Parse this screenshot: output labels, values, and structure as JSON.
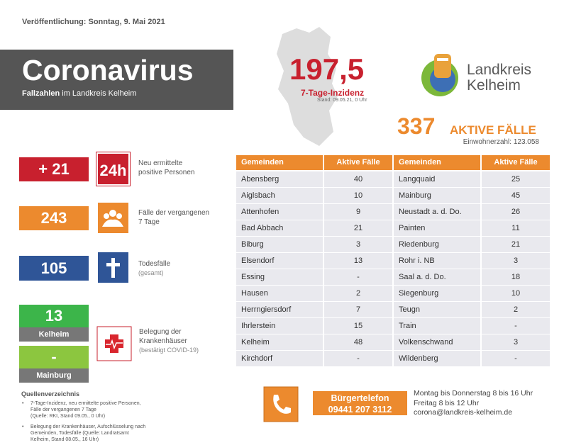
{
  "header": {
    "published": "Veröffentlichung: Sonntag, 9. Mai 2021",
    "title": "Coronavirus",
    "subtitle_bold": "Fallzahlen",
    "subtitle": "im Landkreis Kelheim"
  },
  "incidence": {
    "value": "197,5",
    "label": "7-Tage-Inzidenz",
    "stand": "Stand: 09.05.21, 0 Uhr"
  },
  "logo": {
    "line1": "Landkreis",
    "line2": "Kelheim"
  },
  "active": {
    "value": "337",
    "label": "AKTIVE FÄLLE",
    "population": "Einwohnerzahl: 123.058"
  },
  "stats": [
    {
      "value": "+ 21",
      "icon": "24h",
      "label": [
        "Neu ermittelte",
        "positive Personen"
      ]
    },
    {
      "value": "243",
      "label": [
        "Fälle der vergangenen",
        "7 Tage"
      ]
    },
    {
      "value": "105",
      "label": [
        "Todesfälle",
        "(gesamt)"
      ]
    }
  ],
  "hospital": {
    "kelheim_value": "13",
    "kelheim": "Kelheim",
    "mainburg_value": "-",
    "mainburg": "Mainburg",
    "label": [
      "Belegung der",
      "Krankenhäuser",
      "(bestätigt COVID-19)"
    ]
  },
  "table": {
    "headers": [
      "Gemeinden",
      "Aktive Fälle",
      "Gemeinden",
      "Aktive Fälle"
    ],
    "rows": [
      [
        "Abensberg",
        40,
        "Langquaid",
        25
      ],
      [
        "Aiglsbach",
        10,
        "Mainburg",
        45
      ],
      [
        "Attenhofen",
        9,
        "Neustadt a. d. Do.",
        26
      ],
      [
        "Bad Abbach",
        21,
        "Painten",
        11
      ],
      [
        "Biburg",
        3,
        "Riedenburg",
        21
      ],
      [
        "Elsendorf",
        13,
        "Rohr i. NB",
        3
      ],
      [
        "Essing",
        "-",
        "Saal a. d. Do.",
        18
      ],
      [
        "Hausen",
        2,
        "Siegenburg",
        10
      ],
      [
        "Herrngiersdorf",
        7,
        "Teugn",
        2
      ],
      [
        "Ihrlerstein",
        15,
        "Train",
        "-"
      ],
      [
        "Kelheim",
        48,
        "Volkenschwand",
        3
      ],
      [
        "Kirchdorf",
        "-",
        "Wildenberg",
        "-"
      ]
    ]
  },
  "sources": {
    "title": "Quellenverzeichnis",
    "items": [
      [
        "7-Tage-Inzidenz, neu ermittelte positive Personen,",
        "Fälle der vergangenen 7 Tage",
        "(Quelle: RKI, Stand 09.05., 0 Uhr)"
      ],
      [
        "Belegung der Krankenhäuser, Aufschlüsselung nach",
        "Gemeinden, Todesfälle (Quelle: Landratsamt",
        "Kelheim, Stand 08.05., 16 Uhr)"
      ]
    ]
  },
  "hotline": {
    "title": "Bürgertelefon",
    "number": "09441 207 3112",
    "lines": [
      "Montag bis Donnerstag 8 bis 16 Uhr",
      "Freitag 8 bis 12 Uhr",
      "corona@landkreis-kelheim.de"
    ]
  }
}
